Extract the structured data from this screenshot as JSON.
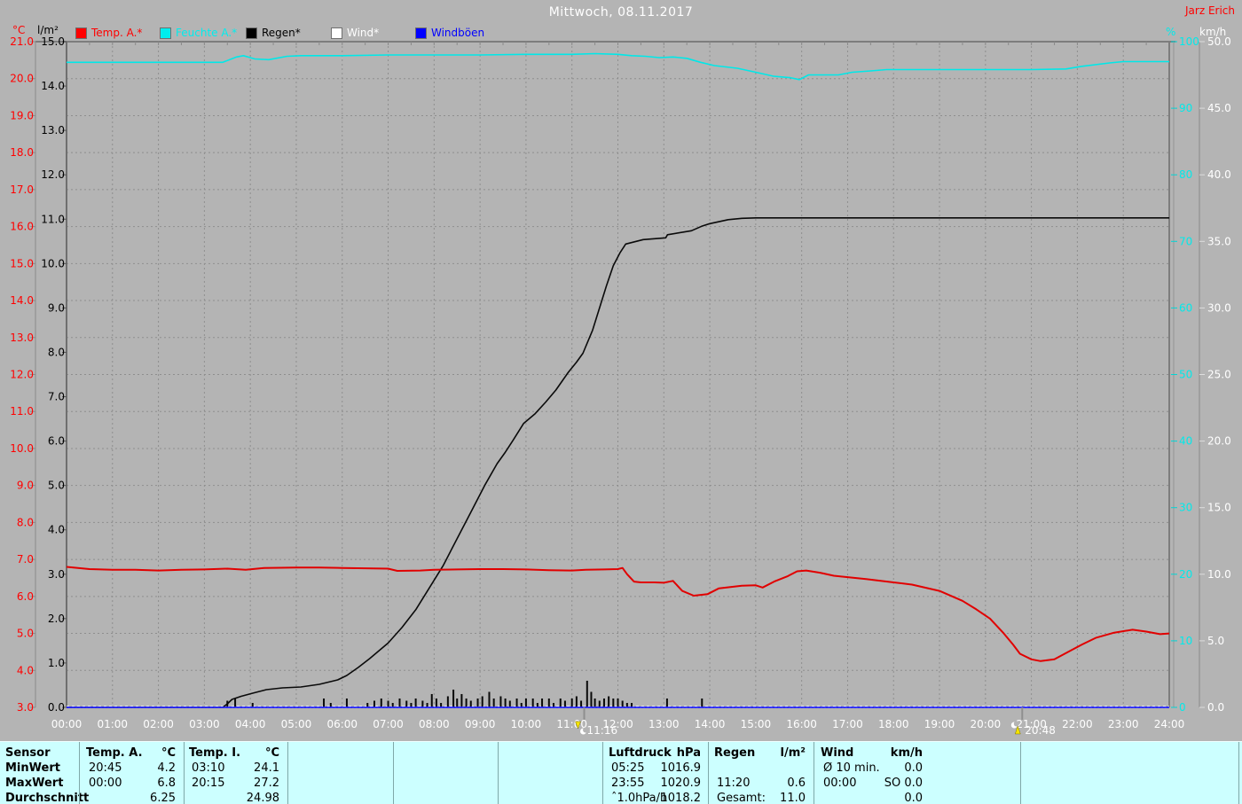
{
  "header": {
    "title": "Mittwoch, 08.11.2017",
    "watermark": "Jarz Erich"
  },
  "units": {
    "temp": "°C",
    "rain": "l/m²",
    "humidity": "%",
    "wind": "km/h"
  },
  "legend": {
    "items": [
      {
        "label": "Temp. A.*",
        "color": "#ff0000",
        "x": 85
      },
      {
        "label": "Feuchte A.*",
        "color": "#00eeee",
        "x": 180
      },
      {
        "label": "Regen*",
        "color": "#000000",
        "x": 277
      },
      {
        "label": "Wind*",
        "color": "#ffffff",
        "x": 373
      },
      {
        "label": "Windböen",
        "color": "#0000ff",
        "x": 468
      }
    ]
  },
  "chart_data": {
    "type": "line",
    "title": "Mittwoch, 08.11.2017",
    "x_axis": {
      "start_hour": 0,
      "end_hour": 24,
      "tick_step_hours": 1,
      "tick_format": "HH:00"
    },
    "axes": {
      "temp_c": {
        "label": "°C",
        "min": 3,
        "max": 21,
        "step": 1,
        "color": "#ff0000",
        "side": "left"
      },
      "rain_lm2": {
        "label": "l/m²",
        "min": 0,
        "max": 15,
        "step": 1,
        "color": "#000000",
        "side": "left"
      },
      "humidity_pct": {
        "label": "%",
        "min": 0,
        "max": 100,
        "step": 10,
        "color": "#00eaea",
        "side": "right"
      },
      "wind_kmh": {
        "label": "km/h",
        "min": 0,
        "max": 50,
        "step": 5,
        "color": "#ffffff",
        "side": "right"
      }
    },
    "grid": {
      "horizontal_every_c": 1,
      "vertical_every_hours": 1,
      "style": "dashed"
    },
    "series": [
      {
        "name": "Feuchte A.*",
        "axis": "humidity_pct",
        "color": "#00e8e8",
        "type": "line",
        "points": [
          [
            0,
            96.9
          ],
          [
            1,
            96.9
          ],
          [
            2,
            96.9
          ],
          [
            3,
            96.9
          ],
          [
            3.4,
            96.9
          ],
          [
            3.7,
            97.7
          ],
          [
            3.85,
            97.9
          ],
          [
            4.1,
            97.4
          ],
          [
            4.4,
            97.3
          ],
          [
            4.8,
            97.8
          ],
          [
            5.1,
            97.9
          ],
          [
            6,
            97.9
          ],
          [
            7,
            98.0
          ],
          [
            8,
            98.0
          ],
          [
            9,
            98.0
          ],
          [
            10,
            98.1
          ],
          [
            11,
            98.1
          ],
          [
            11.5,
            98.2
          ],
          [
            12,
            98.1
          ],
          [
            12.3,
            97.9
          ],
          [
            12.6,
            97.8
          ],
          [
            12.9,
            97.6
          ],
          [
            13.2,
            97.7
          ],
          [
            13.5,
            97.5
          ],
          [
            13.8,
            96.9
          ],
          [
            14.1,
            96.4
          ],
          [
            14.6,
            96.0
          ],
          [
            15,
            95.4
          ],
          [
            15.4,
            94.8
          ],
          [
            15.75,
            94.6
          ],
          [
            15.95,
            94.3
          ],
          [
            16.15,
            95.0
          ],
          [
            16.8,
            95.0
          ],
          [
            17.1,
            95.4
          ],
          [
            17.5,
            95.6
          ],
          [
            17.85,
            95.8
          ],
          [
            19,
            95.8
          ],
          [
            20,
            95.8
          ],
          [
            21,
            95.8
          ],
          [
            21.75,
            95.9
          ],
          [
            22.1,
            96.3
          ],
          [
            22.7,
            96.8
          ],
          [
            23,
            97.0
          ],
          [
            23.5,
            97.0
          ],
          [
            24,
            97.0
          ]
        ]
      },
      {
        "name": "Regen* Summe",
        "axis": "rain_lm2",
        "color": "#0a0a0a",
        "type": "line",
        "points": [
          [
            0,
            0
          ],
          [
            3.4,
            0
          ],
          [
            3.5,
            0.08
          ],
          [
            3.6,
            0.18
          ],
          [
            3.8,
            0.25
          ],
          [
            4.05,
            0.32
          ],
          [
            4.35,
            0.4
          ],
          [
            4.7,
            0.44
          ],
          [
            5.1,
            0.46
          ],
          [
            5.5,
            0.52
          ],
          [
            5.9,
            0.62
          ],
          [
            6.1,
            0.72
          ],
          [
            6.35,
            0.9
          ],
          [
            6.6,
            1.1
          ],
          [
            7,
            1.45
          ],
          [
            7.3,
            1.8
          ],
          [
            7.6,
            2.2
          ],
          [
            7.9,
            2.7
          ],
          [
            8.2,
            3.2
          ],
          [
            8.5,
            3.8
          ],
          [
            8.8,
            4.4
          ],
          [
            9.1,
            5.0
          ],
          [
            9.37,
            5.49
          ],
          [
            9.55,
            5.75
          ],
          [
            9.72,
            6.02
          ],
          [
            9.95,
            6.4
          ],
          [
            10.2,
            6.62
          ],
          [
            10.43,
            6.88
          ],
          [
            10.65,
            7.15
          ],
          [
            10.92,
            7.55
          ],
          [
            11.1,
            7.78
          ],
          [
            11.24,
            7.98
          ],
          [
            11.45,
            8.5
          ],
          [
            11.6,
            9.0
          ],
          [
            11.75,
            9.5
          ],
          [
            11.9,
            9.95
          ],
          [
            12.05,
            10.25
          ],
          [
            12.17,
            10.44
          ],
          [
            12.55,
            10.54
          ],
          [
            13.04,
            10.58
          ],
          [
            13.08,
            10.65
          ],
          [
            13.6,
            10.74
          ],
          [
            13.82,
            10.84
          ],
          [
            14,
            10.9
          ],
          [
            14.4,
            10.99
          ],
          [
            14.7,
            11.02
          ],
          [
            15,
            11.03
          ],
          [
            18,
            11.03
          ],
          [
            21,
            11.03
          ],
          [
            24,
            11.03
          ]
        ]
      },
      {
        "name": "Regen* Intervall",
        "axis": "rain_lm2",
        "color": "#0a0a0a",
        "type": "bar",
        "points": [
          [
            3.5,
            0.15
          ],
          [
            3.67,
            0.2
          ],
          [
            4.05,
            0.1
          ],
          [
            5.6,
            0.2
          ],
          [
            5.75,
            0.1
          ],
          [
            6.1,
            0.2
          ],
          [
            6.55,
            0.1
          ],
          [
            6.7,
            0.15
          ],
          [
            6.85,
            0.2
          ],
          [
            7.0,
            0.15
          ],
          [
            7.1,
            0.1
          ],
          [
            7.25,
            0.2
          ],
          [
            7.4,
            0.15
          ],
          [
            7.5,
            0.1
          ],
          [
            7.6,
            0.2
          ],
          [
            7.75,
            0.15
          ],
          [
            7.85,
            0.1
          ],
          [
            7.95,
            0.3
          ],
          [
            8.05,
            0.2
          ],
          [
            8.15,
            0.1
          ],
          [
            8.3,
            0.25
          ],
          [
            8.42,
            0.4
          ],
          [
            8.5,
            0.2
          ],
          [
            8.6,
            0.3
          ],
          [
            8.7,
            0.2
          ],
          [
            8.8,
            0.15
          ],
          [
            8.95,
            0.2
          ],
          [
            9.05,
            0.25
          ],
          [
            9.2,
            0.35
          ],
          [
            9.3,
            0.2
          ],
          [
            9.45,
            0.25
          ],
          [
            9.55,
            0.2
          ],
          [
            9.65,
            0.15
          ],
          [
            9.8,
            0.2
          ],
          [
            9.9,
            0.1
          ],
          [
            10.0,
            0.2
          ],
          [
            10.15,
            0.2
          ],
          [
            10.25,
            0.1
          ],
          [
            10.35,
            0.2
          ],
          [
            10.5,
            0.2
          ],
          [
            10.6,
            0.1
          ],
          [
            10.75,
            0.2
          ],
          [
            10.85,
            0.15
          ],
          [
            11.0,
            0.2
          ],
          [
            11.1,
            0.25
          ],
          [
            11.2,
            0.15
          ],
          [
            11.33,
            0.6
          ],
          [
            11.42,
            0.35
          ],
          [
            11.5,
            0.2
          ],
          [
            11.6,
            0.15
          ],
          [
            11.7,
            0.2
          ],
          [
            11.8,
            0.25
          ],
          [
            11.9,
            0.2
          ],
          [
            12.0,
            0.2
          ],
          [
            12.1,
            0.15
          ],
          [
            12.2,
            0.1
          ],
          [
            12.3,
            0.1
          ],
          [
            13.07,
            0.2
          ],
          [
            13.83,
            0.2
          ]
        ]
      },
      {
        "name": "Temp. A.*",
        "axis": "temp_c",
        "color": "#e10000",
        "type": "line",
        "points": [
          [
            0,
            6.8
          ],
          [
            0.5,
            6.74
          ],
          [
            1,
            6.72
          ],
          [
            1.5,
            6.72
          ],
          [
            2,
            6.7
          ],
          [
            2.5,
            6.72
          ],
          [
            3,
            6.73
          ],
          [
            3.5,
            6.75
          ],
          [
            3.9,
            6.72
          ],
          [
            4.3,
            6.77
          ],
          [
            5,
            6.78
          ],
          [
            5.5,
            6.78
          ],
          [
            6,
            6.77
          ],
          [
            6.5,
            6.76
          ],
          [
            7,
            6.75
          ],
          [
            7.2,
            6.69
          ],
          [
            7.7,
            6.7
          ],
          [
            8,
            6.72
          ],
          [
            8.5,
            6.73
          ],
          [
            9,
            6.74
          ],
          [
            9.5,
            6.74
          ],
          [
            10,
            6.73
          ],
          [
            10.5,
            6.71
          ],
          [
            11,
            6.7
          ],
          [
            11.3,
            6.72
          ],
          [
            11.7,
            6.73
          ],
          [
            12,
            6.74
          ],
          [
            12.1,
            6.77
          ],
          [
            12.2,
            6.6
          ],
          [
            12.35,
            6.4
          ],
          [
            12.5,
            6.38
          ],
          [
            12.8,
            6.38
          ],
          [
            13,
            6.37
          ],
          [
            13.2,
            6.42
          ],
          [
            13.4,
            6.15
          ],
          [
            13.65,
            6.02
          ],
          [
            13.95,
            6.06
          ],
          [
            14.2,
            6.22
          ],
          [
            14.7,
            6.29
          ],
          [
            15,
            6.3
          ],
          [
            15.15,
            6.24
          ],
          [
            15.4,
            6.4
          ],
          [
            15.7,
            6.55
          ],
          [
            15.9,
            6.68
          ],
          [
            16.1,
            6.7
          ],
          [
            16.4,
            6.64
          ],
          [
            16.7,
            6.56
          ],
          [
            17,
            6.52
          ],
          [
            17.4,
            6.47
          ],
          [
            18,
            6.38
          ],
          [
            18.4,
            6.32
          ],
          [
            19,
            6.15
          ],
          [
            19.5,
            5.88
          ],
          [
            19.8,
            5.65
          ],
          [
            20.1,
            5.4
          ],
          [
            20.4,
            5.0
          ],
          [
            20.6,
            4.7
          ],
          [
            20.75,
            4.45
          ],
          [
            21,
            4.3
          ],
          [
            21.2,
            4.25
          ],
          [
            21.5,
            4.3
          ],
          [
            21.8,
            4.5
          ],
          [
            22.1,
            4.7
          ],
          [
            22.4,
            4.88
          ],
          [
            22.8,
            5.02
          ],
          [
            23.2,
            5.1
          ],
          [
            23.5,
            5.05
          ],
          [
            23.8,
            4.98
          ],
          [
            24,
            5.0
          ]
        ]
      },
      {
        "name": "Wind*",
        "axis": "wind_kmh",
        "color": "#ffffff",
        "type": "line",
        "points": [
          [
            0,
            0
          ],
          [
            24,
            0
          ]
        ]
      },
      {
        "name": "Windböen",
        "axis": "wind_kmh",
        "color": "#0000ff",
        "type": "line",
        "points": [
          [
            0,
            0
          ],
          [
            24,
            0
          ]
        ]
      }
    ],
    "markers": [
      {
        "time": "11:16",
        "type": "moonset",
        "label": "11:16"
      },
      {
        "time": "20:48",
        "type": "moonrise",
        "label": "20:48"
      }
    ]
  },
  "stats": {
    "row_labels": [
      "Sensor",
      "MinWert",
      "MaxWert",
      "Durchschnitt"
    ],
    "blocks": [
      {
        "header": "Temp. A.",
        "unit": "°C",
        "rows": [
          [
            "20:45",
            "4.2"
          ],
          [
            "00:00",
            "6.8"
          ],
          [
            "",
            "6.25"
          ]
        ]
      },
      {
        "header": "Temp. I.",
        "unit": "°C",
        "rows": [
          [
            "03:10",
            "24.1"
          ],
          [
            "20:15",
            "27.2"
          ],
          [
            "",
            "24.98"
          ]
        ]
      },
      {
        "header": "Luftdruck",
        "unit": "hPa",
        "rows": [
          [
            "05:25",
            "1016.9"
          ],
          [
            "23:55",
            "1020.9"
          ],
          [
            "ˆ1.0hPa/h",
            "1018.2"
          ]
        ]
      },
      {
        "header": "Regen",
        "unit": "l/m²",
        "rows": [
          [
            "",
            ""
          ],
          [
            "11:20",
            "0.6"
          ],
          [
            "Gesamt:",
            "11.0"
          ]
        ]
      },
      {
        "header": "Wind",
        "unit": "km/h",
        "rows": [
          [
            "Ø 10 min.",
            "0.0"
          ],
          [
            "00:00",
            "SO 0.0"
          ],
          [
            "",
            "0.0"
          ]
        ]
      }
    ]
  }
}
